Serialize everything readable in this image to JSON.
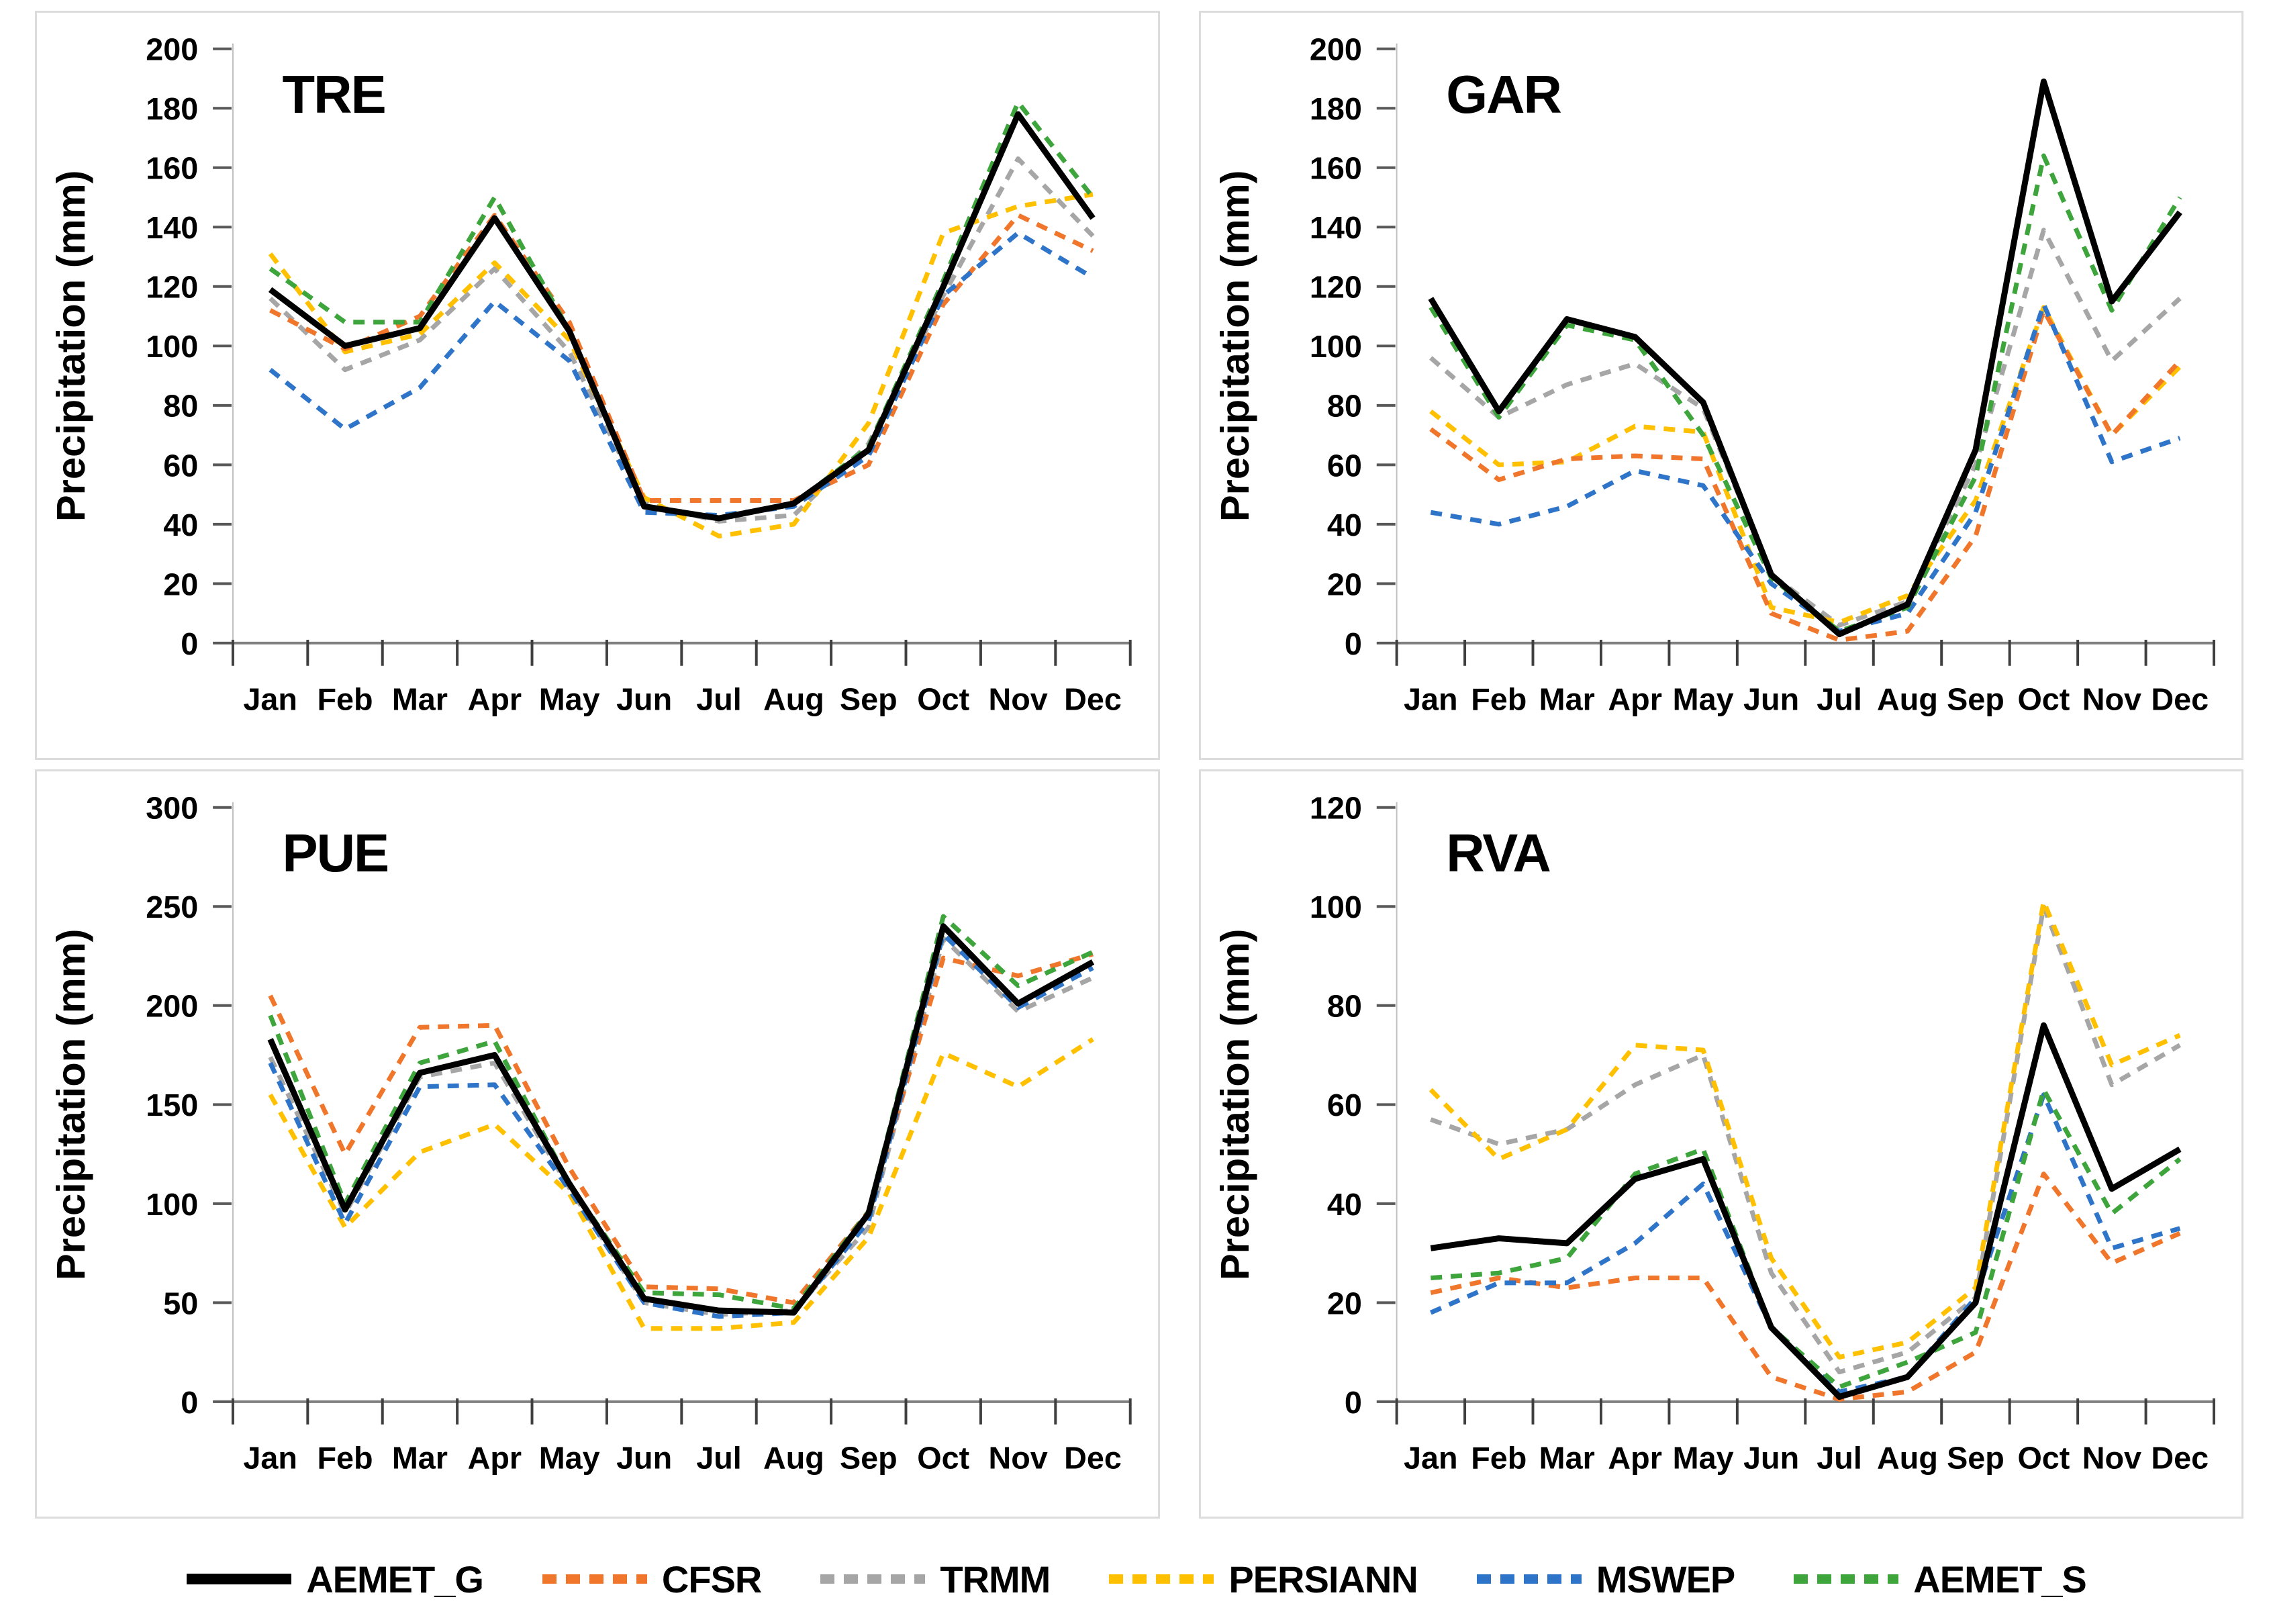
{
  "figure": {
    "background": "#ffffff",
    "panel_border": "#dcdcdc",
    "x_axis_color": "#7f7f7f",
    "y_axis_color": "#c0c0c0",
    "tick_color": "#3f3f3f",
    "text_color": "#000000"
  },
  "legend": {
    "items": [
      {
        "label": "AEMET_G",
        "color": "#000000",
        "style": "solid"
      },
      {
        "label": "CFSR",
        "color": "#F0762B",
        "style": "dashed"
      },
      {
        "label": "TRMM",
        "color": "#A6A6A6",
        "style": "dashed"
      },
      {
        "label": "PERSIANN",
        "color": "#FFC000",
        "style": "dashed"
      },
      {
        "label": "MSWEP",
        "color": "#2E74C8",
        "style": "dashed"
      },
      {
        "label": "AEMET_S",
        "color": "#3DA53C",
        "style": "dashed"
      }
    ]
  },
  "chart_data": [
    {
      "type": "line",
      "title": "TRE",
      "ylabel": "Precipitation (mm)",
      "ylim": [
        0,
        200
      ],
      "ytick_step": 20,
      "grid": false,
      "categories": [
        "Jan",
        "Feb",
        "Mar",
        "Apr",
        "May",
        "Jun",
        "Jul",
        "Aug",
        "Sep",
        "Oct",
        "Nov",
        "Dec"
      ],
      "series": [
        {
          "name": "AEMET_G",
          "color": "#000000",
          "dash": "solid",
          "values": [
            119,
            100,
            106,
            143,
            105,
            46,
            42,
            47,
            65,
            120,
            178,
            143
          ]
        },
        {
          "name": "CFSR",
          "color": "#F0762B",
          "dash": "dashed",
          "values": [
            112,
            99,
            110,
            144,
            108,
            48,
            48,
            48,
            60,
            114,
            144,
            132
          ]
        },
        {
          "name": "TRMM",
          "color": "#A6A6A6",
          "dash": "dashed",
          "values": [
            116,
            92,
            102,
            126,
            98,
            47,
            41,
            43,
            67,
            117,
            163,
            137
          ]
        },
        {
          "name": "PERSIANN",
          "color": "#FFC000",
          "dash": "dashed",
          "values": [
            131,
            98,
            104,
            128,
            102,
            49,
            36,
            40,
            74,
            138,
            147,
            151
          ]
        },
        {
          "name": "MSWEP",
          "color": "#2E74C8",
          "dash": "dashed",
          "values": [
            92,
            72,
            86,
            115,
            95,
            44,
            43,
            46,
            63,
            117,
            138,
            123
          ]
        },
        {
          "name": "AEMET_S",
          "color": "#3DA53C",
          "dash": "dashed",
          "values": [
            126,
            108,
            108,
            150,
            105,
            46,
            42,
            47,
            66,
            122,
            182,
            150
          ]
        }
      ]
    },
    {
      "type": "line",
      "title": "GAR",
      "ylabel": "Precipitation (mm)",
      "ylim": [
        0,
        200
      ],
      "ytick_step": 20,
      "grid": false,
      "categories": [
        "Jan",
        "Feb",
        "Mar",
        "Apr",
        "May",
        "Jun",
        "Jul",
        "Aug",
        "Sep",
        "Oct",
        "Nov",
        "Dec"
      ],
      "series": [
        {
          "name": "AEMET_G",
          "color": "#000000",
          "dash": "solid",
          "values": [
            116,
            78,
            109,
            103,
            81,
            23,
            3,
            13,
            65,
            189,
            115,
            145
          ]
        },
        {
          "name": "CFSR",
          "color": "#F0762B",
          "dash": "dashed",
          "values": [
            72,
            55,
            62,
            63,
            62,
            10,
            1,
            4,
            36,
            112,
            70,
            95
          ]
        },
        {
          "name": "TRMM",
          "color": "#A6A6A6",
          "dash": "dashed",
          "values": [
            96,
            76,
            87,
            94,
            79,
            23,
            6,
            14,
            60,
            139,
            95,
            116
          ]
        },
        {
          "name": "PERSIANN",
          "color": "#FFC000",
          "dash": "dashed",
          "values": [
            78,
            60,
            61,
            73,
            71,
            12,
            7,
            16,
            48,
            113,
            70,
            93
          ]
        },
        {
          "name": "MSWEP",
          "color": "#2E74C8",
          "dash": "dashed",
          "values": [
            44,
            40,
            46,
            58,
            53,
            20,
            4,
            10,
            44,
            114,
            61,
            69
          ]
        },
        {
          "name": "AEMET_S",
          "color": "#3DA53C",
          "dash": "dashed",
          "values": [
            113,
            76,
            107,
            102,
            70,
            22,
            4,
            12,
            56,
            164,
            112,
            150
          ]
        }
      ]
    },
    {
      "type": "line",
      "title": "PUE",
      "ylabel": "Precipitation (mm)",
      "ylim": [
        0,
        300
      ],
      "ytick_step": 50,
      "grid": false,
      "categories": [
        "Jan",
        "Feb",
        "Mar",
        "Apr",
        "May",
        "Jun",
        "Jul",
        "Aug",
        "Sep",
        "Oct",
        "Nov",
        "Dec"
      ],
      "series": [
        {
          "name": "AEMET_G",
          "color": "#000000",
          "dash": "solid",
          "values": [
            183,
            97,
            166,
            175,
            110,
            52,
            46,
            45,
            95,
            240,
            201,
            222
          ]
        },
        {
          "name": "CFSR",
          "color": "#F0762B",
          "dash": "dashed",
          "values": [
            205,
            125,
            189,
            190,
            118,
            58,
            57,
            50,
            96,
            224,
            215,
            226
          ]
        },
        {
          "name": "TRMM",
          "color": "#A6A6A6",
          "dash": "dashed",
          "values": [
            174,
            95,
            164,
            171,
            108,
            50,
            44,
            46,
            88,
            234,
            197,
            214
          ]
        },
        {
          "name": "PERSIANN",
          "color": "#FFC000",
          "dash": "dashed",
          "values": [
            155,
            88,
            126,
            140,
            105,
            37,
            37,
            40,
            83,
            176,
            159,
            183
          ]
        },
        {
          "name": "MSWEP",
          "color": "#2E74C8",
          "dash": "dashed",
          "values": [
            171,
            90,
            159,
            160,
            107,
            50,
            43,
            45,
            91,
            236,
            199,
            219
          ]
        },
        {
          "name": "AEMET_S",
          "color": "#3DA53C",
          "dash": "dashed",
          "values": [
            195,
            100,
            171,
            182,
            110,
            55,
            54,
            47,
            96,
            245,
            210,
            227
          ]
        }
      ]
    },
    {
      "type": "line",
      "title": "RVA",
      "ylabel": "Precipitation (mm)",
      "ylim": [
        0,
        120
      ],
      "ytick_step": 20,
      "grid": false,
      "categories": [
        "Jan",
        "Feb",
        "Mar",
        "Apr",
        "May",
        "Jun",
        "Jul",
        "Aug",
        "Sep",
        "Oct",
        "Nov",
        "Dec"
      ],
      "series": [
        {
          "name": "AEMET_G",
          "color": "#000000",
          "dash": "solid",
          "values": [
            31,
            33,
            32,
            45,
            49,
            15,
            1,
            5,
            20,
            76,
            43,
            51
          ]
        },
        {
          "name": "CFSR",
          "color": "#F0762B",
          "dash": "dashed",
          "values": [
            22,
            25,
            23,
            25,
            25,
            5,
            0.5,
            2,
            10,
            46,
            28,
            34
          ]
        },
        {
          "name": "TRMM",
          "color": "#A6A6A6",
          "dash": "dashed",
          "values": [
            57,
            52,
            55,
            64,
            70,
            26,
            6,
            10,
            21,
            100,
            64,
            72
          ]
        },
        {
          "name": "PERSIANN",
          "color": "#FFC000",
          "dash": "dashed",
          "values": [
            63,
            49,
            55,
            72,
            71,
            29,
            9,
            12,
            23,
            101,
            68,
            74
          ]
        },
        {
          "name": "MSWEP",
          "color": "#2E74C8",
          "dash": "dashed",
          "values": [
            18,
            24,
            24,
            32,
            44,
            15,
            2,
            5,
            21,
            62,
            31,
            35
          ]
        },
        {
          "name": "AEMET_S",
          "color": "#3DA53C",
          "dash": "dashed",
          "values": [
            25,
            26,
            29,
            46,
            51,
            15,
            3,
            8,
            14,
            63,
            38,
            49
          ]
        }
      ]
    }
  ]
}
